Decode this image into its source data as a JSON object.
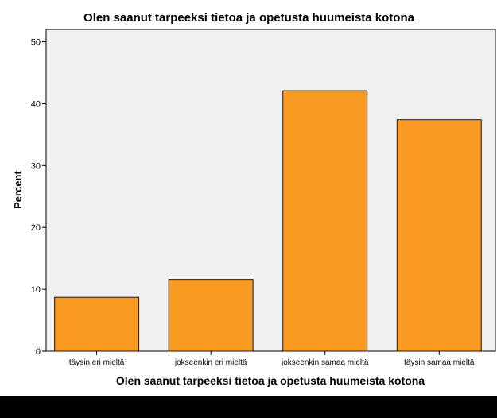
{
  "chart_data": {
    "type": "bar",
    "title": "Olen saanut tarpeeksi tietoa ja opetusta huumeista kotona",
    "xlabel": "Olen saanut tarpeeksi tietoa ja opetusta huumeista kotona",
    "ylabel": "Percent",
    "categories": [
      "täysin eri mieltä",
      "jokseenkin eri mieltä",
      "jokseenkin samaa mieltä",
      "täysin samaa mieltä"
    ],
    "values": [
      8.7,
      11.6,
      42.1,
      37.4
    ],
    "ylim": [
      0,
      52
    ],
    "yticks": [
      0,
      10,
      20,
      30,
      40,
      50
    ],
    "grid": false,
    "legend": "none",
    "colors": {
      "bar_fill": "#f99a22",
      "bar_stroke": "#1a1a1a",
      "plot_background": "#f0f0f0",
      "axis": "#000000"
    }
  }
}
